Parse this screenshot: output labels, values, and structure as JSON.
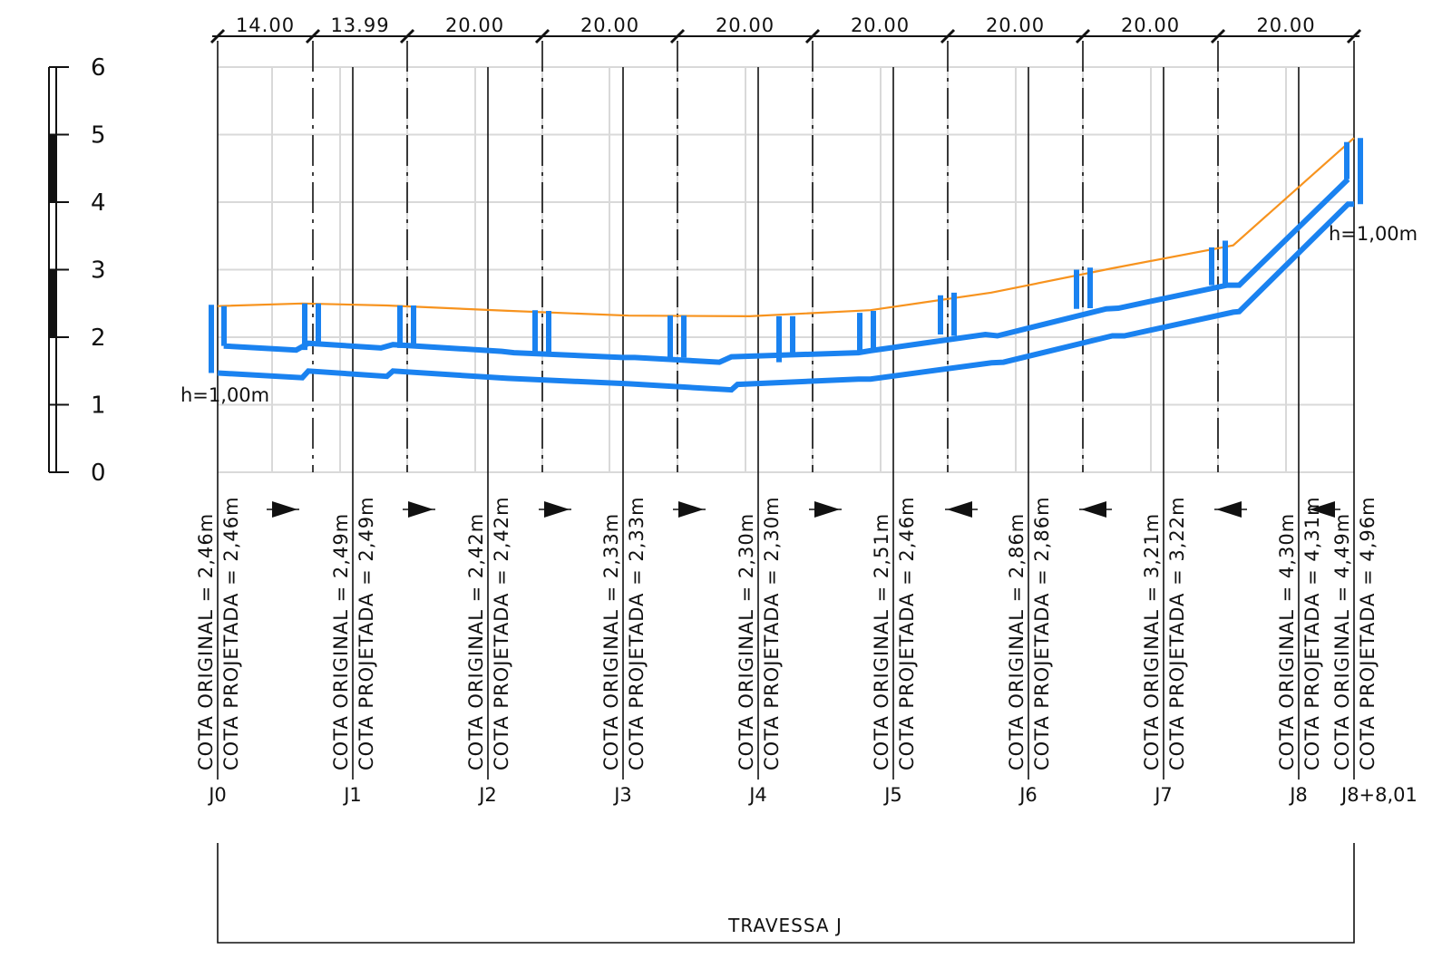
{
  "chart_data": {
    "type": "line",
    "title": "",
    "xlabel": "",
    "ylabel": "",
    "ylim": [
      0,
      6
    ],
    "y_ticks": [
      "0",
      "1",
      "2",
      "3",
      "4",
      "5",
      "6"
    ],
    "grid": true,
    "x_units": "m",
    "stations": [
      "J0",
      "J1",
      "J2",
      "J3",
      "J4",
      "J5",
      "J6",
      "J7",
      "J8",
      "J8+8,01"
    ],
    "segment_lengths": [
      "14.00",
      "13.99",
      "20.00",
      "20.00",
      "20.00",
      "20.00",
      "20.00",
      "20.00",
      "20.00"
    ],
    "cota_original_label": "COTA ORIGINAL",
    "cota_projetada_label": "COTA PROJETADA",
    "original_values": [
      "2,46m",
      "2,49m",
      "2,42m",
      "2,33m",
      "2,30m",
      "2,51m",
      "2,86m",
      "3,21m",
      "4,30m",
      "4,49m"
    ],
    "projetada_values": [
      "2,46m",
      "2,49m",
      "2,42m",
      "2,33m",
      "2,30m",
      "2,46m",
      "2,86m",
      "3,22m",
      "4,31m",
      "4,96m"
    ],
    "terrain_profile": [
      {
        "x": 0,
        "y": 2.46
      },
      {
        "x": 14,
        "y": 2.5
      },
      {
        "x": 27.99,
        "y": 2.47
      },
      {
        "x": 47.99,
        "y": 2.39
      },
      {
        "x": 67.99,
        "y": 2.32
      },
      {
        "x": 87.99,
        "y": 2.31
      },
      {
        "x": 107.99,
        "y": 2.4
      },
      {
        "x": 127.99,
        "y": 2.66
      },
      {
        "x": 147.99,
        "y": 3.02
      },
      {
        "x": 167.99,
        "y": 3.36
      },
      {
        "x": 187.99,
        "y": 4.95
      }
    ],
    "pipe_top": [
      {
        "x": 1,
        "y": 1.87
      },
      {
        "x": 13,
        "y": 1.81
      },
      {
        "x": 15,
        "y": 1.91
      },
      {
        "x": 27,
        "y": 1.84
      },
      {
        "x": 29,
        "y": 1.89
      },
      {
        "x": 47,
        "y": 1.79
      },
      {
        "x": 49,
        "y": 1.77
      },
      {
        "x": 67,
        "y": 1.7
      },
      {
        "x": 69,
        "y": 1.7
      },
      {
        "x": 83,
        "y": 1.63
      },
      {
        "x": 85,
        "y": 1.71
      },
      {
        "x": 106,
        "y": 1.77
      },
      {
        "x": 108,
        "y": 1.8
      },
      {
        "x": 127,
        "y": 2.04
      },
      {
        "x": 129,
        "y": 2.02
      },
      {
        "x": 147,
        "y": 2.42
      },
      {
        "x": 149,
        "y": 2.43
      },
      {
        "x": 167,
        "y": 2.77
      },
      {
        "x": 169,
        "y": 2.77
      },
      {
        "x": 187,
        "y": 4.34
      }
    ],
    "pipe_bottom": [
      {
        "x": 0,
        "y": 1.47
      },
      {
        "x": 14,
        "y": 1.4
      },
      {
        "x": 15,
        "y": 1.5
      },
      {
        "x": 28,
        "y": 1.42
      },
      {
        "x": 29,
        "y": 1.5
      },
      {
        "x": 48,
        "y": 1.39
      },
      {
        "x": 68,
        "y": 1.31
      },
      {
        "x": 85,
        "y": 1.22
      },
      {
        "x": 86,
        "y": 1.3
      },
      {
        "x": 106,
        "y": 1.38
      },
      {
        "x": 108,
        "y": 1.38
      },
      {
        "x": 128,
        "y": 1.62
      },
      {
        "x": 130,
        "y": 1.63
      },
      {
        "x": 148,
        "y": 2.02
      },
      {
        "x": 150,
        "y": 2.02
      },
      {
        "x": 168,
        "y": 2.37
      },
      {
        "x": 169,
        "y": 2.38
      },
      {
        "x": 187,
        "y": 3.97
      },
      {
        "x": 188,
        "y": 3.97
      }
    ],
    "flow_directions": [
      "right",
      "right",
      "right",
      "right",
      "right",
      "left",
      "left",
      "left",
      "left",
      "left"
    ],
    "h_labels": [
      "h=1,00m",
      "h=1,00m"
    ],
    "street_name": "TRAVESSA J"
  }
}
